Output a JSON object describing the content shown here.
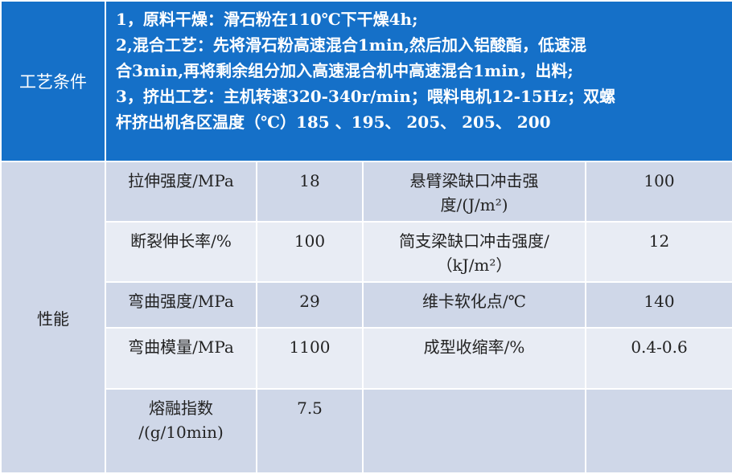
{
  "header": {
    "label": "工艺条件",
    "lines": [
      "1，原料干燥：滑石粉在110℃下干燥4h;",
      "2,混合工艺：先将滑石粉高速混合1min,然后加入铝酸酯，低速混",
      "合3min,再将剩余组分加入高速混合机中高速混合1min，出料;",
      "3，挤出工艺：主机转速320-340r/min；喂料电机12-15Hz；双螺",
      "杆挤出机各区温度（℃）185 、195、 205、 205、 200"
    ]
  },
  "section_label": "性能",
  "rows": [
    {
      "prop1": "拉伸强度/MPa",
      "val1": "18",
      "prop2": "悬臂梁缺口冲击强度/(J/m²)",
      "val2": "100"
    },
    {
      "prop1": "断裂伸长率/%",
      "val1": "100",
      "prop2": "简支梁缺口冲击强度/（kJ/m²）",
      "val2": "12"
    },
    {
      "prop1": "弯曲强度/MPa",
      "val1": "29",
      "prop2": "维卡软化点/℃",
      "val2": "140"
    },
    {
      "prop1": "弯曲模量/MPa",
      "val1": "1100",
      "prop2": "成型收缩率/%",
      "val2": "0.4-0.6"
    },
    {
      "prop1": "熔融指数/(g/10min)",
      "val1": "7.5",
      "prop2": "",
      "val2": ""
    }
  ]
}
